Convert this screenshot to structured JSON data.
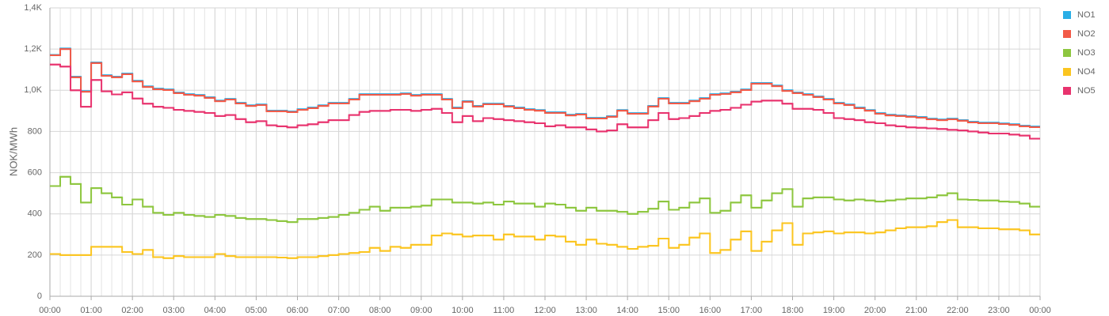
{
  "chart_data": {
    "type": "step",
    "y_label": "NOK/MWh",
    "xlim": [
      0,
      24
    ],
    "xticks": [
      {
        "value": 0,
        "label": "00:00"
      },
      {
        "value": 1,
        "label": "01:00"
      },
      {
        "value": 2,
        "label": "02:00"
      },
      {
        "value": 3,
        "label": "03:00"
      },
      {
        "value": 4,
        "label": "04:00"
      },
      {
        "value": 5,
        "label": "05:00"
      },
      {
        "value": 6,
        "label": "06:00"
      },
      {
        "value": 7,
        "label": "07:00"
      },
      {
        "value": 8,
        "label": "08:00"
      },
      {
        "value": 9,
        "label": "09:00"
      },
      {
        "value": 10,
        "label": "10:00"
      },
      {
        "value": 11,
        "label": "11:00"
      },
      {
        "value": 12,
        "label": "12:00"
      },
      {
        "value": 13,
        "label": "13:00"
      },
      {
        "value": 14,
        "label": "14:00"
      },
      {
        "value": 15,
        "label": "15:00"
      },
      {
        "value": 16,
        "label": "16:00"
      },
      {
        "value": 17,
        "label": "17:00"
      },
      {
        "value": 18,
        "label": "18:00"
      },
      {
        "value": 19,
        "label": "19:00"
      },
      {
        "value": 20,
        "label": "20:00"
      },
      {
        "value": 21,
        "label": "21:00"
      },
      {
        "value": 22,
        "label": "22:00"
      },
      {
        "value": 23,
        "label": "23:00"
      },
      {
        "value": 24,
        "label": "00:00"
      }
    ],
    "ylim": [
      0,
      1400
    ],
    "yticks": [
      0,
      200,
      400,
      600,
      800,
      {
        "value": 1000,
        "label": "1,0K"
      },
      {
        "value": 1200,
        "label": "1,2K"
      },
      {
        "value": 1400,
        "label": "1,4K"
      }
    ],
    "grid": true,
    "legend": "right",
    "x": [
      0,
      0.25,
      0.5,
      0.75,
      1,
      1.25,
      1.5,
      1.75,
      2,
      2.25,
      2.5,
      2.75,
      3,
      3.25,
      3.5,
      3.75,
      4,
      4.25,
      4.5,
      4.75,
      5,
      5.25,
      5.5,
      5.75,
      6,
      6.25,
      6.5,
      6.75,
      7,
      7.25,
      7.5,
      7.75,
      8,
      8.25,
      8.5,
      8.75,
      9,
      9.25,
      9.5,
      9.75,
      10,
      10.25,
      10.5,
      10.75,
      11,
      11.25,
      11.5,
      11.75,
      12,
      12.25,
      12.5,
      12.75,
      13,
      13.25,
      13.5,
      13.75,
      14,
      14.25,
      14.5,
      14.75,
      15,
      15.25,
      15.5,
      15.75,
      16,
      16.25,
      16.5,
      16.75,
      17,
      17.25,
      17.5,
      17.75,
      18,
      18.25,
      18.5,
      18.75,
      19,
      19.25,
      19.5,
      19.75,
      20,
      20.25,
      20.5,
      20.75,
      21,
      21.25,
      21.5,
      21.75,
      22,
      22.25,
      22.5,
      22.75,
      23,
      23.25,
      23.5,
      23.75
    ],
    "series": [
      {
        "name": "NO1",
        "color": "#2aaee6",
        "values": [
          1172,
          1203,
          1066,
          996,
          1135,
          1073,
          1066,
          1081,
          1046,
          1019,
          1008,
          1004,
          989,
          981,
          977,
          966,
          950,
          958,
          939,
          927,
          931,
          901,
          901,
          897,
          908,
          916,
          927,
          939,
          939,
          958,
          981,
          981,
          981,
          981,
          985,
          977,
          981,
          981,
          958,
          916,
          947,
          924,
          935,
          935,
          924,
          916,
          908,
          904,
          893,
          893,
          881,
          885,
          866,
          866,
          874,
          904,
          889,
          889,
          924,
          962,
          939,
          939,
          950,
          962,
          981,
          985,
          993,
          1004,
          1035,
          1035,
          1023,
          1000,
          989,
          981,
          970,
          958,
          939,
          931,
          916,
          904,
          889,
          881,
          878,
          874,
          870,
          862,
          858,
          862,
          855,
          847,
          843,
          843,
          839,
          835,
          828,
          824
        ]
      },
      {
        "name": "NO2",
        "color": "#f25a48",
        "values": [
          1170,
          1200,
          1063,
          993,
          1132,
          1070,
          1063,
          1078,
          1043,
          1016,
          1005,
          1001,
          986,
          978,
          974,
          963,
          947,
          955,
          936,
          924,
          928,
          898,
          898,
          894,
          905,
          913,
          924,
          936,
          936,
          955,
          978,
          978,
          978,
          978,
          982,
          974,
          978,
          978,
          955,
          913,
          944,
          921,
          932,
          932,
          921,
          913,
          905,
          901,
          890,
          890,
          878,
          882,
          863,
          863,
          871,
          901,
          886,
          886,
          921,
          959,
          936,
          936,
          947,
          959,
          978,
          982,
          990,
          1001,
          1032,
          1032,
          1020,
          997,
          986,
          978,
          967,
          955,
          936,
          928,
          913,
          901,
          886,
          878,
          875,
          871,
          867,
          859,
          855,
          859,
          852,
          844,
          840,
          840,
          836,
          832,
          825,
          821
        ]
      },
      {
        "name": "NO3",
        "color": "#8dc63f",
        "values": [
          535,
          580,
          545,
          455,
          525,
          500,
          480,
          445,
          470,
          435,
          405,
          395,
          405,
          395,
          390,
          385,
          395,
          390,
          380,
          375,
          375,
          370,
          365,
          360,
          375,
          375,
          380,
          385,
          395,
          405,
          420,
          435,
          415,
          430,
          430,
          435,
          440,
          470,
          470,
          455,
          455,
          450,
          455,
          445,
          460,
          450,
          450,
          435,
          450,
          445,
          430,
          415,
          430,
          415,
          415,
          410,
          400,
          410,
          425,
          460,
          420,
          430,
          455,
          475,
          405,
          415,
          455,
          490,
          430,
          465,
          500,
          520,
          435,
          475,
          480,
          480,
          470,
          465,
          470,
          465,
          460,
          465,
          470,
          475,
          475,
          480,
          490,
          500,
          470,
          468,
          465,
          465,
          460,
          458,
          450,
          435
        ]
      },
      {
        "name": "NO4",
        "color": "#fbc520",
        "values": [
          205,
          200,
          200,
          200,
          240,
          240,
          240,
          215,
          205,
          225,
          190,
          185,
          195,
          190,
          190,
          190,
          205,
          195,
          190,
          190,
          190,
          190,
          188,
          185,
          190,
          190,
          195,
          200,
          205,
          210,
          215,
          235,
          220,
          240,
          235,
          250,
          250,
          295,
          305,
          300,
          290,
          295,
          295,
          275,
          300,
          290,
          290,
          275,
          295,
          290,
          265,
          250,
          275,
          255,
          250,
          240,
          230,
          240,
          245,
          280,
          235,
          250,
          285,
          305,
          210,
          225,
          275,
          315,
          220,
          265,
          320,
          355,
          250,
          305,
          310,
          315,
          305,
          310,
          310,
          305,
          310,
          320,
          330,
          335,
          335,
          340,
          360,
          370,
          335,
          335,
          330,
          330,
          325,
          325,
          320,
          300
        ]
      },
      {
        "name": "NO5",
        "color": "#e8336e",
        "values": [
          1125,
          1115,
          1000,
          920,
          1050,
          995,
          980,
          990,
          960,
          935,
          920,
          915,
          905,
          900,
          895,
          890,
          875,
          880,
          860,
          845,
          850,
          830,
          825,
          820,
          830,
          835,
          845,
          855,
          855,
          880,
          895,
          900,
          900,
          905,
          905,
          900,
          905,
          910,
          890,
          845,
          875,
          850,
          865,
          860,
          855,
          850,
          845,
          840,
          825,
          830,
          820,
          820,
          810,
          800,
          805,
          835,
          820,
          820,
          855,
          890,
          860,
          865,
          875,
          890,
          900,
          905,
          915,
          930,
          945,
          950,
          950,
          935,
          910,
          910,
          905,
          890,
          865,
          860,
          855,
          845,
          840,
          830,
          825,
          820,
          818,
          815,
          812,
          808,
          805,
          800,
          795,
          790,
          790,
          785,
          780,
          765
        ]
      }
    ]
  }
}
